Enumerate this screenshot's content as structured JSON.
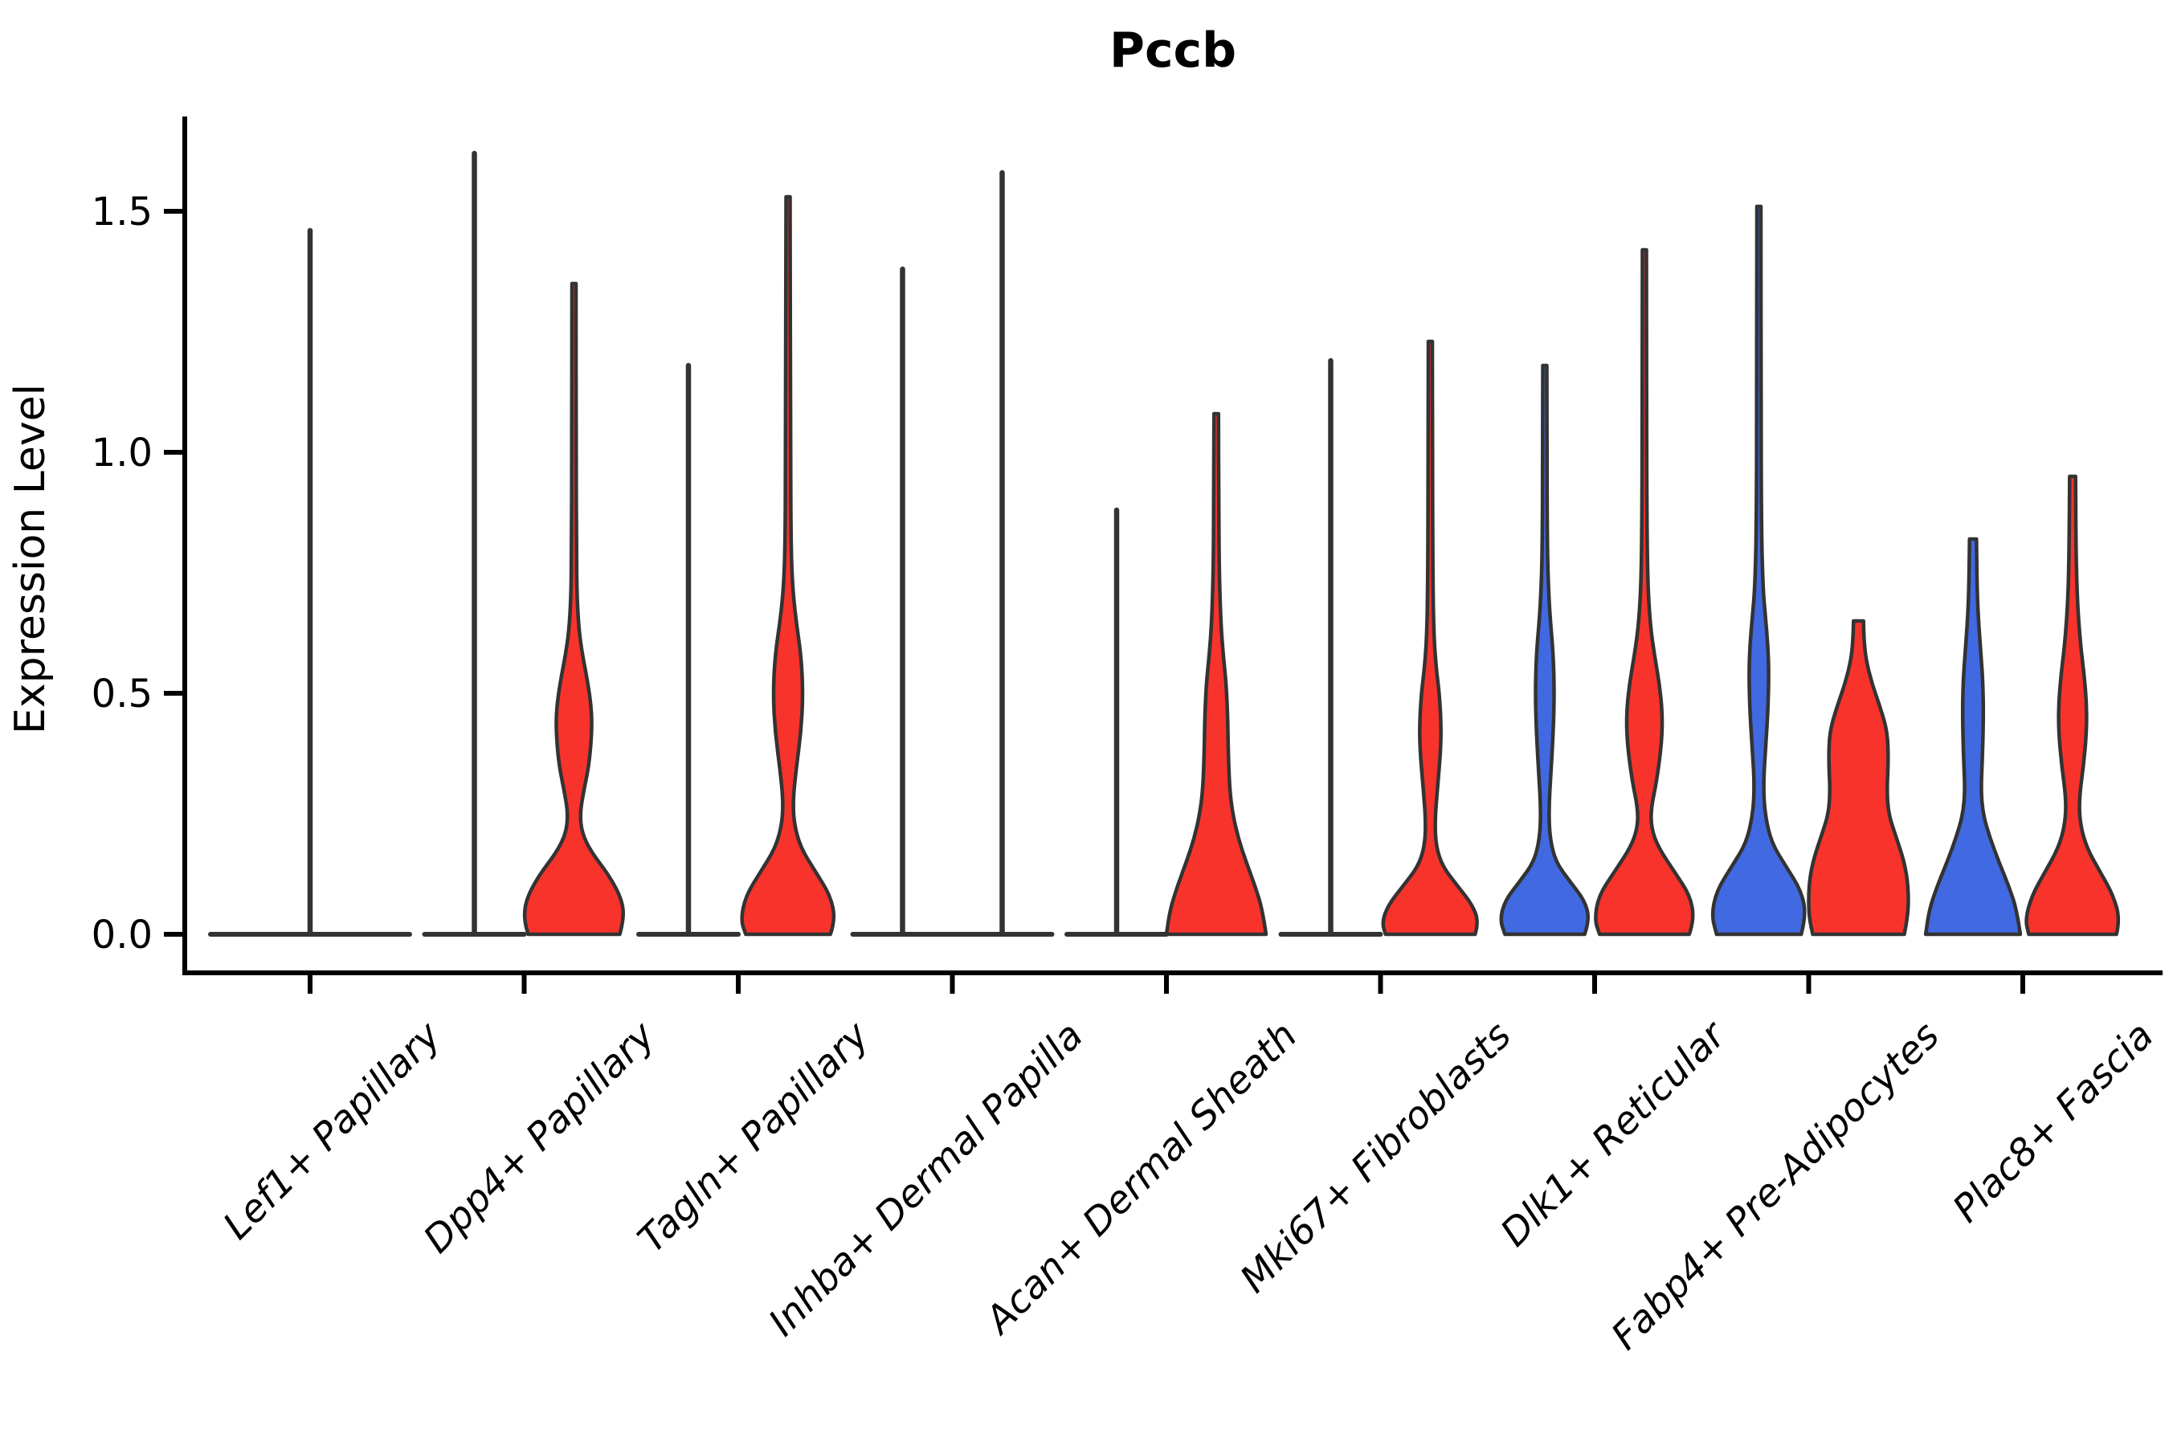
{
  "chart": {
    "title": "Pccb",
    "ylabel": "Expression Level"
  },
  "colors": {
    "red": "#f8332b",
    "blue": "#4169e1",
    "outline": "#333333",
    "axis": "#000000",
    "background": "#ffffff"
  },
  "chart_data": {
    "type": "violin",
    "title": "Pccb",
    "xlabel": "",
    "ylabel": "Expression Level",
    "ylim": [
      -0.08,
      1.7
    ],
    "grid": false,
    "legend": "none",
    "ytick_values": [
      0.0,
      0.5,
      1.0,
      1.5
    ],
    "ytick_labels": [
      "0.0",
      "0.5",
      "1.0",
      "1.5"
    ],
    "categories": [
      "Lef1+ Papillary",
      "Dpp4+ Papillary",
      "Tagln+ Papillary",
      "Inhba+ Dermal Papilla",
      "Acan+ Dermal Sheath",
      "Mki67+ Fibroblasts",
      "Dlk1+ Reticular",
      "Fabp4+ Pre-Adipocytes",
      "Plac8+ Fascia"
    ],
    "groups": [
      {
        "category": "Lef1+ Papillary",
        "violins": [
          {
            "offset": 0,
            "color": "none",
            "flat": true,
            "wide": true,
            "max": 1.46
          }
        ]
      },
      {
        "category": "Dpp4+ Papillary",
        "violins": [
          {
            "offset": -1,
            "color": "none",
            "flat": true,
            "max": 1.62
          },
          {
            "offset": 1,
            "color": "red",
            "flat": false,
            "max": 1.35,
            "profile": [
              [
                0,
                0.92
              ],
              [
                0.03,
                1.0
              ],
              [
                0.07,
                0.97
              ],
              [
                0.12,
                0.72
              ],
              [
                0.17,
                0.35
              ],
              [
                0.21,
                0.16
              ],
              [
                0.25,
                0.12
              ],
              [
                0.3,
                0.2
              ],
              [
                0.35,
                0.3
              ],
              [
                0.42,
                0.36
              ],
              [
                0.47,
                0.35
              ],
              [
                0.52,
                0.28
              ],
              [
                0.58,
                0.17
              ],
              [
                0.63,
                0.1
              ],
              [
                0.7,
                0.06
              ],
              [
                0.8,
                0.05
              ],
              [
                1.0,
                0.045
              ],
              [
                1.35,
                0.04
              ]
            ]
          }
        ]
      },
      {
        "category": "Tagln+ Papillary",
        "violins": [
          {
            "offset": -1,
            "color": "none",
            "flat": true,
            "max": 1.18
          },
          {
            "offset": 1,
            "color": "red",
            "flat": false,
            "max": 1.53,
            "profile": [
              [
                0,
                0.85
              ],
              [
                0.03,
                0.95
              ],
              [
                0.08,
                0.85
              ],
              [
                0.13,
                0.55
              ],
              [
                0.18,
                0.25
              ],
              [
                0.23,
                0.12
              ],
              [
                0.28,
                0.1
              ],
              [
                0.34,
                0.16
              ],
              [
                0.42,
                0.26
              ],
              [
                0.5,
                0.3
              ],
              [
                0.58,
                0.26
              ],
              [
                0.65,
                0.16
              ],
              [
                0.72,
                0.09
              ],
              [
                0.8,
                0.06
              ],
              [
                1.0,
                0.05
              ],
              [
                1.53,
                0.04
              ]
            ]
          }
        ]
      },
      {
        "category": "Inhba+ Dermal Papilla",
        "violins": [
          {
            "offset": -1,
            "color": "none",
            "flat": true,
            "max": 1.38
          },
          {
            "offset": 1,
            "color": "none",
            "flat": true,
            "max": 1.58
          }
        ]
      },
      {
        "category": "Acan+ Dermal Sheath",
        "violins": [
          {
            "offset": -1,
            "color": "none",
            "flat": true,
            "max": 0.88
          },
          {
            "offset": 1,
            "color": "red",
            "flat": false,
            "max": 1.08,
            "profile": [
              [
                0,
                1.0
              ],
              [
                0.05,
                0.93
              ],
              [
                0.1,
                0.78
              ],
              [
                0.15,
                0.6
              ],
              [
                0.2,
                0.44
              ],
              [
                0.25,
                0.33
              ],
              [
                0.3,
                0.27
              ],
              [
                0.38,
                0.24
              ],
              [
                0.45,
                0.23
              ],
              [
                0.52,
                0.2
              ],
              [
                0.58,
                0.14
              ],
              [
                0.65,
                0.09
              ],
              [
                0.75,
                0.06
              ],
              [
                0.9,
                0.05
              ],
              [
                1.08,
                0.045
              ]
            ]
          }
        ]
      },
      {
        "category": "Mki67+ Fibroblasts",
        "violins": [
          {
            "offset": -1,
            "color": "none",
            "flat": true,
            "max": 1.19
          },
          {
            "offset": 1,
            "color": "red",
            "flat": false,
            "max": 1.23,
            "profile": [
              [
                0,
                0.9
              ],
              [
                0.025,
                0.97
              ],
              [
                0.06,
                0.85
              ],
              [
                0.1,
                0.55
              ],
              [
                0.14,
                0.25
              ],
              [
                0.18,
                0.12
              ],
              [
                0.23,
                0.09
              ],
              [
                0.3,
                0.14
              ],
              [
                0.37,
                0.2
              ],
              [
                0.43,
                0.22
              ],
              [
                0.5,
                0.18
              ],
              [
                0.55,
                0.12
              ],
              [
                0.62,
                0.07
              ],
              [
                0.75,
                0.05
              ],
              [
                1.0,
                0.045
              ],
              [
                1.23,
                0.04
              ]
            ]
          }
        ]
      },
      {
        "category": "Dlk1+ Reticular",
        "violins": [
          {
            "offset": -1,
            "color": "blue",
            "flat": false,
            "max": 1.18,
            "profile": [
              [
                0,
                0.8
              ],
              [
                0.03,
                0.9
              ],
              [
                0.07,
                0.8
              ],
              [
                0.11,
                0.5
              ],
              [
                0.15,
                0.22
              ],
              [
                0.2,
                0.1
              ],
              [
                0.26,
                0.08
              ],
              [
                0.33,
                0.12
              ],
              [
                0.42,
                0.17
              ],
              [
                0.5,
                0.19
              ],
              [
                0.58,
                0.17
              ],
              [
                0.64,
                0.12
              ],
              [
                0.7,
                0.08
              ],
              [
                0.8,
                0.05
              ],
              [
                1.0,
                0.045
              ],
              [
                1.18,
                0.04
              ]
            ]
          },
          {
            "offset": 1,
            "color": "red",
            "flat": false,
            "max": 1.42,
            "profile": [
              [
                0,
                0.9
              ],
              [
                0.03,
                1.0
              ],
              [
                0.08,
                0.92
              ],
              [
                0.13,
                0.6
              ],
              [
                0.18,
                0.28
              ],
              [
                0.22,
                0.14
              ],
              [
                0.26,
                0.13
              ],
              [
                0.32,
                0.25
              ],
              [
                0.4,
                0.35
              ],
              [
                0.46,
                0.36
              ],
              [
                0.52,
                0.3
              ],
              [
                0.58,
                0.2
              ],
              [
                0.64,
                0.12
              ],
              [
                0.72,
                0.07
              ],
              [
                0.85,
                0.05
              ],
              [
                1.1,
                0.045
              ],
              [
                1.42,
                0.04
              ]
            ]
          }
        ]
      },
      {
        "category": "Fabp4+ Pre-Adipocytes",
        "violins": [
          {
            "offset": -1,
            "color": "blue",
            "flat": false,
            "max": 1.51,
            "profile": [
              [
                0,
                0.85
              ],
              [
                0.04,
                0.95
              ],
              [
                0.09,
                0.85
              ],
              [
                0.14,
                0.55
              ],
              [
                0.19,
                0.25
              ],
              [
                0.25,
                0.12
              ],
              [
                0.31,
                0.09
              ],
              [
                0.38,
                0.13
              ],
              [
                0.46,
                0.18
              ],
              [
                0.54,
                0.2
              ],
              [
                0.6,
                0.18
              ],
              [
                0.66,
                0.13
              ],
              [
                0.72,
                0.08
              ],
              [
                0.85,
                0.05
              ],
              [
                1.1,
                0.045
              ],
              [
                1.51,
                0.04
              ]
            ]
          },
          {
            "offset": 1,
            "color": "red",
            "flat": false,
            "max": 0.65,
            "profile": [
              [
                0,
                0.92
              ],
              [
                0.04,
                1.0
              ],
              [
                0.1,
                1.0
              ],
              [
                0.15,
                0.92
              ],
              [
                0.2,
                0.76
              ],
              [
                0.25,
                0.6
              ],
              [
                0.3,
                0.57
              ],
              [
                0.36,
                0.6
              ],
              [
                0.42,
                0.58
              ],
              [
                0.47,
                0.44
              ],
              [
                0.52,
                0.27
              ],
              [
                0.57,
                0.15
              ],
              [
                0.61,
                0.11
              ],
              [
                0.65,
                0.1
              ]
            ]
          }
        ]
      },
      {
        "category": "Plac8+ Fascia",
        "violins": [
          {
            "offset": -1,
            "color": "blue",
            "flat": false,
            "max": 0.82,
            "profile": [
              [
                0,
                0.95
              ],
              [
                0.05,
                0.88
              ],
              [
                0.1,
                0.72
              ],
              [
                0.15,
                0.52
              ],
              [
                0.2,
                0.34
              ],
              [
                0.25,
                0.2
              ],
              [
                0.3,
                0.16
              ],
              [
                0.37,
                0.19
              ],
              [
                0.45,
                0.21
              ],
              [
                0.52,
                0.2
              ],
              [
                0.58,
                0.16
              ],
              [
                0.65,
                0.11
              ],
              [
                0.72,
                0.08
              ],
              [
                0.82,
                0.07
              ]
            ]
          },
          {
            "offset": 1,
            "color": "red",
            "flat": false,
            "max": 0.95,
            "profile": [
              [
                0,
                0.88
              ],
              [
                0.03,
                0.95
              ],
              [
                0.08,
                0.82
              ],
              [
                0.13,
                0.55
              ],
              [
                0.18,
                0.28
              ],
              [
                0.23,
                0.15
              ],
              [
                0.28,
                0.13
              ],
              [
                0.35,
                0.22
              ],
              [
                0.42,
                0.28
              ],
              [
                0.48,
                0.28
              ],
              [
                0.54,
                0.23
              ],
              [
                0.6,
                0.16
              ],
              [
                0.68,
                0.1
              ],
              [
                0.78,
                0.07
              ],
              [
                0.95,
                0.06
              ]
            ]
          }
        ]
      }
    ]
  }
}
